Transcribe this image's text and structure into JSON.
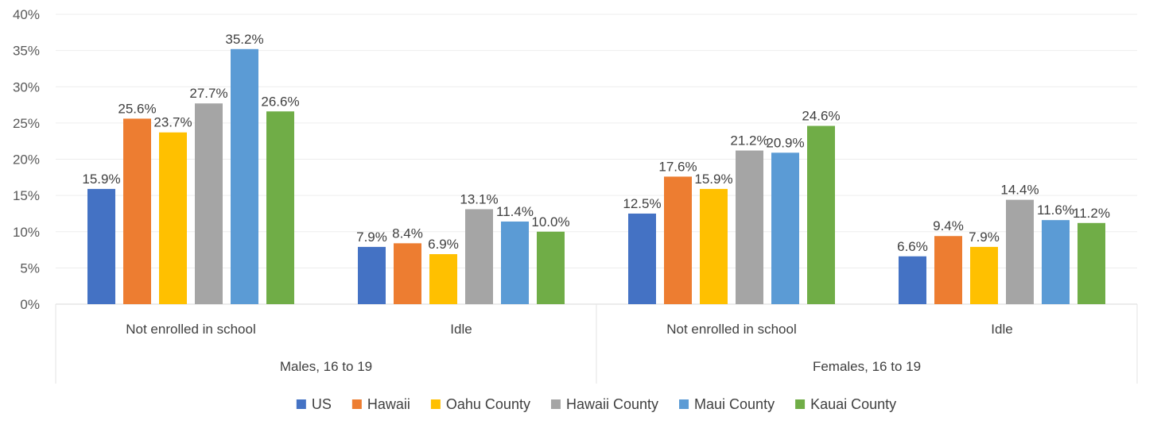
{
  "chart_data": {
    "type": "bar",
    "title": "",
    "xlabel": "",
    "ylabel": "",
    "ylim": [
      0,
      40
    ],
    "yticks": [
      "0%",
      "5%",
      "10%",
      "15%",
      "20%",
      "25%",
      "30%",
      "35%",
      "40%"
    ],
    "y_tick_values": [
      0,
      5,
      10,
      15,
      20,
      25,
      30,
      35,
      40
    ],
    "grid": true,
    "legend_position": "bottom",
    "groups": [
      {
        "label": "Males, 16 to 19",
        "categories": [
          "Not enrolled in school",
          "Idle"
        ]
      },
      {
        "label": "Females, 16 to 19",
        "categories": [
          "Not enrolled in school",
          "Idle"
        ]
      }
    ],
    "categories": [
      "Not enrolled in school",
      "Idle",
      "Not enrolled in school",
      "Idle"
    ],
    "series": [
      {
        "name": "US",
        "color": "#4472C4",
        "values": [
          15.9,
          7.9,
          12.5,
          6.6
        ],
        "labels": [
          "15.9%",
          "7.9%",
          "12.5%",
          "6.6%"
        ]
      },
      {
        "name": "Hawaii",
        "color": "#ED7D31",
        "values": [
          25.6,
          8.4,
          17.6,
          9.4
        ],
        "labels": [
          "25.6%",
          "8.4%",
          "17.6%",
          "9.4%"
        ]
      },
      {
        "name": "Oahu County",
        "color": "#FFC000",
        "values": [
          23.7,
          6.9,
          15.9,
          7.9
        ],
        "labels": [
          "23.7%",
          "6.9%",
          "15.9%",
          "7.9%"
        ]
      },
      {
        "name": "Hawaii County",
        "color": "#A5A5A5",
        "values": [
          27.7,
          13.1,
          21.2,
          14.4
        ],
        "labels": [
          "27.7%",
          "13.1%",
          "21.2%",
          "14.4%"
        ]
      },
      {
        "name": "Maui County",
        "color": "#5B9BD5",
        "values": [
          35.2,
          11.4,
          20.9,
          11.6
        ],
        "labels": [
          "35.2%",
          "11.4%",
          "20.9%",
          "11.6%"
        ]
      },
      {
        "name": "Kauai County",
        "color": "#70AD47",
        "values": [
          26.6,
          10.0,
          24.6,
          11.2
        ],
        "labels": [
          "26.6%",
          "10.0%",
          "24.6%",
          "11.2%"
        ]
      }
    ]
  }
}
